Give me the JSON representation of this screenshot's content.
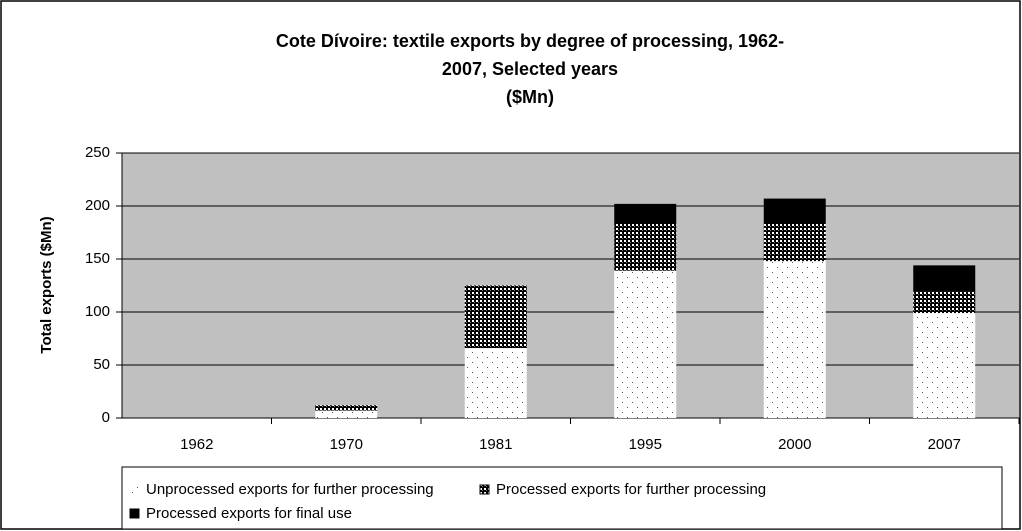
{
  "chart_data": {
    "type": "stacked_bar",
    "title": [
      "Cote Dívoire: textile exports by degree of processing, 1962-",
      "2007, Selected years",
      "($Mn)"
    ],
    "y_label": "Total exports ($Mn)",
    "categories": [
      "1962",
      "1970",
      "1981",
      "1995",
      "2000",
      "2007"
    ],
    "series": [
      {
        "name": "Unprocessed exports for further processing",
        "color": "#ffffff",
        "pattern": "dots",
        "values": [
          0,
          7,
          66,
          139,
          148,
          99
        ]
      },
      {
        "name": "Processed exports for further processing",
        "color": "#000000",
        "pattern": "checker",
        "values": [
          0,
          5,
          59,
          44,
          35,
          20
        ]
      },
      {
        "name": "Processed exports for final use",
        "color": "#000000",
        "pattern": "solid",
        "values": [
          0,
          0,
          0,
          19,
          24,
          25
        ]
      }
    ],
    "ylim": [
      0,
      250
    ],
    "yticks": [
      0,
      50,
      100,
      150,
      200,
      250
    ],
    "grid": true,
    "plot_background": "#c0c0c0",
    "legend": "bottom"
  }
}
